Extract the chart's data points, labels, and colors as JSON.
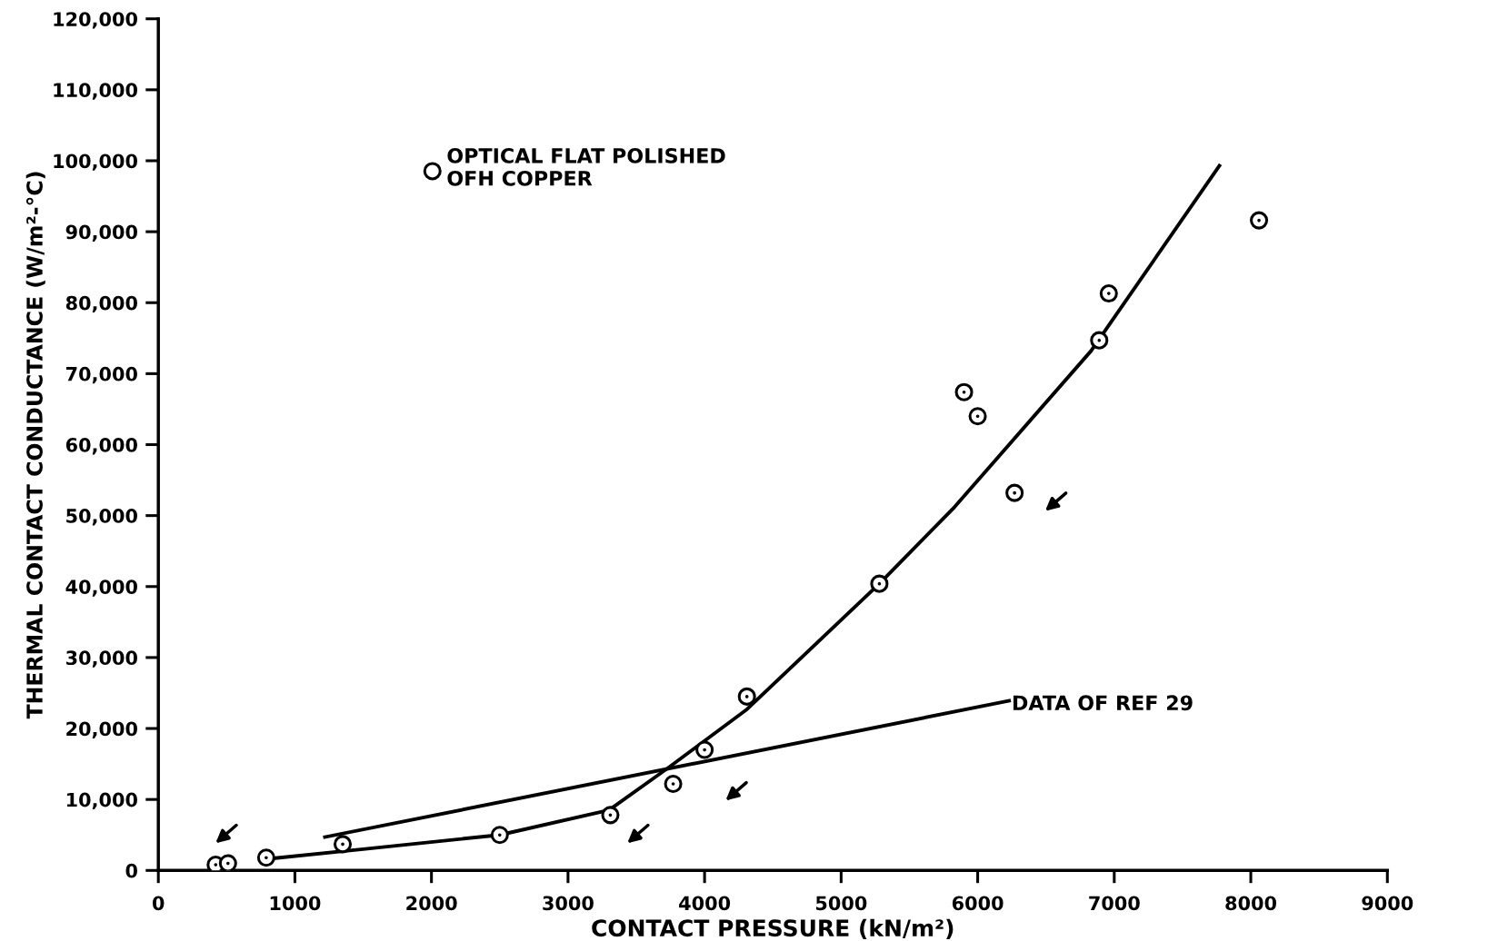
{
  "chart_data": {
    "type": "scatter",
    "xlabel": "CONTACT PRESSURE (kN/m²)",
    "ylabel": "THERMAL CONTACT CONDUCTANCE (W/m²-°C)",
    "xlim": [
      0,
      9000
    ],
    "ylim": [
      0,
      120000
    ],
    "xticks": [
      0,
      1000,
      2000,
      3000,
      4000,
      5000,
      6000,
      7000,
      8000,
      9000
    ],
    "yticks": [
      0,
      {
        "value": 10000,
        "label": "10,000"
      },
      {
        "value": 20000,
        "label": "20,000"
      },
      {
        "value": 30000,
        "label": "30,000"
      },
      {
        "value": 40000,
        "label": "40,000"
      },
      {
        "value": 50000,
        "label": "50,000"
      },
      {
        "value": 60000,
        "label": "60,000"
      },
      {
        "value": 70000,
        "label": "70,000"
      },
      {
        "value": 80000,
        "label": "80,000"
      },
      {
        "value": 90000,
        "label": "90,000"
      },
      {
        "value": 100000,
        "label": "100,000"
      },
      {
        "value": 110000,
        "label": "110,000"
      },
      {
        "value": 120000,
        "label": "120,000"
      }
    ],
    "grid": false,
    "legend": "top left",
    "marker": "circle",
    "series": [
      {
        "name": "OPTICAL FLAT POLISHED\nOFH COPPER",
        "color": "#000000",
        "x": [
          420,
          510,
          790,
          1350,
          2500,
          3310,
          3770,
          4000,
          4310,
          5280,
          5900,
          6000,
          6270,
          6890,
          6960,
          8060
        ],
        "values": [
          800,
          1000,
          1800,
          3700,
          5000,
          7800,
          12200,
          17000,
          24500,
          40400,
          67400,
          64000,
          53200,
          74700,
          81300,
          91600
        ]
      },
      {
        "type": "line",
        "color": "#000000",
        "marker": "none",
        "x": [
          790,
          1500,
          2500,
          3300,
          3730,
          4310,
          5280,
          5830,
          6830,
          7770
        ],
        "values": [
          1600,
          3000,
          5000,
          8500,
          14400,
          22700,
          40400,
          51200,
          73200,
          99300
        ]
      },
      {
        "type": "line",
        "color": "#000000",
        "marker": "none",
        "x": [
          1220,
          6230
        ],
        "values": [
          4700,
          23900
        ]
      }
    ],
    "annotations": [
      {
        "text": "DATA OF REF 29",
        "x": 6230,
        "y": 23900
      }
    ]
  }
}
